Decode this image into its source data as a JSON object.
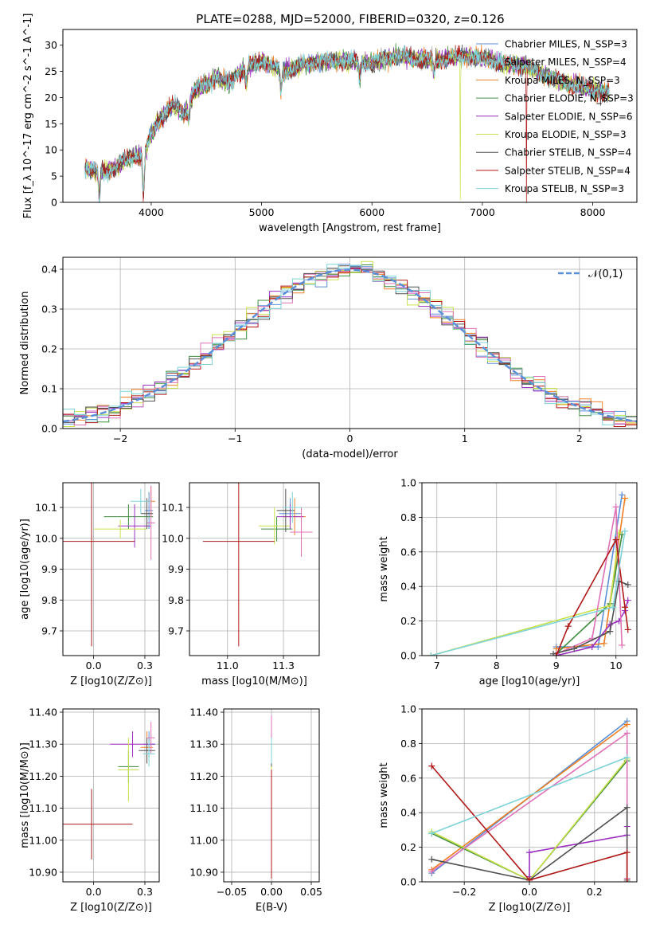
{
  "figure_title": "PLATE=0288, MJD=52000, FIBERID=0320, z=0.126",
  "legend_entries": [
    "Chabrier MILES, N$_{SSP}$=3",
    "Salpeter MILES, N$_{SSP}$=4",
    "Kroupa MILES, N$_{SSP}$=3",
    "Chabrier ELODIE, N$_{SSP}$=3",
    "Salpeter ELODIE, N$_{SSP}$=6",
    "Kroupa ELODIE, N$_{SSP}$=3",
    "Chabrier STELIB, N$_{SSP}$=4",
    "Salpeter STELIB, N$_{SSP}$=4",
    "Kroupa STELIB, N$_{SSP}$=3"
  ],
  "legend_display": [
    "Chabrier MILES, N_SSP=3",
    "Salpeter MILES, N_SSP=4",
    "Kroupa MILES, N_SSP=3",
    "Chabrier ELODIE, N_SSP=3",
    "Salpeter ELODIE, N_SSP=6",
    "Kroupa ELODIE, N_SSP=3",
    "Chabrier STELIB, N_SSP=4",
    "Salpeter STELIB, N_SSP=4",
    "Kroupa STELIB, N_SSP=3"
  ],
  "model_colors": [
    "#5b8fd8",
    "#a8a8a8",
    "#f07f22",
    "#3f8c3f",
    "#9b30c0",
    "#c8e04a",
    "#505050",
    "#b01818",
    "#7dd3d8"
  ],
  "mass_colors": [
    "#5b8fd8",
    "#f07f22",
    "#3f8c3f",
    "#9b30c0",
    "#c8e04a",
    "#e070b8",
    "#505050",
    "#b01818",
    "#7dd3d8"
  ],
  "chart_data": [
    {
      "id": "spectrum",
      "type": "line",
      "xlabel": "wavelength [Angstrom, rest frame]",
      "ylabel": "Flux [f_λ 10^-17 erg cm^-2 s^-1 A^-1]",
      "xlim": [
        3200,
        8400
      ],
      "ylim": [
        0,
        33
      ],
      "xticks": [
        4000,
        5000,
        6000,
        7000,
        8000
      ],
      "yticks": [
        0,
        5,
        10,
        15,
        20,
        25,
        30
      ],
      "grid": false,
      "legend_position": "top-right",
      "x_range_data": [
        3400,
        8150
      ],
      "envelope": {
        "x": [
          3400,
          3500,
          3600,
          3700,
          3800,
          3900,
          3950,
          4000,
          4100,
          4200,
          4300,
          4400,
          4500,
          4600,
          4700,
          4800,
          4900,
          5000,
          5200,
          5400,
          5600,
          5800,
          6000,
          6200,
          6400,
          6600,
          6800,
          7000,
          7200,
          7400,
          7600,
          7800,
          8000,
          8150
        ],
        "y": [
          6.5,
          6.0,
          6.0,
          7.0,
          8.5,
          9.0,
          10.0,
          13.0,
          16.5,
          18.5,
          17.0,
          21.5,
          22.5,
          24.0,
          22.5,
          25.0,
          26.0,
          27.0,
          25.0,
          26.5,
          27.0,
          27.0,
          26.5,
          28.0,
          27.5,
          27.0,
          28.0,
          27.5,
          26.5,
          26.0,
          24.0,
          22.5,
          21.5,
          21.0
        ]
      },
      "dips": [
        {
          "x": 3530,
          "depth": 6.0
        },
        {
          "x": 3930,
          "depth": 9.0
        },
        {
          "x": 4340,
          "depth": 3.0
        },
        {
          "x": 4861,
          "depth": 3.5
        },
        {
          "x": 5175,
          "depth": 4.0
        },
        {
          "x": 5890,
          "depth": 3.0
        },
        {
          "x": 6563,
          "depth": 2.5
        },
        {
          "x": 6800,
          "depth": 28.0
        },
        {
          "x": 7400,
          "depth": 26.0
        }
      ]
    },
    {
      "id": "residuals",
      "type": "histogram",
      "xlabel": "(data-model)/error",
      "ylabel": "Normed distribution",
      "xlim": [
        -2.5,
        2.5
      ],
      "ylim": [
        0,
        0.43
      ],
      "xticks": [
        -2,
        -1,
        0,
        1,
        2
      ],
      "yticks": [
        0.0,
        0.1,
        0.2,
        0.3,
        0.4
      ],
      "grid": true,
      "legend_position": "top-right",
      "reference_curve": {
        "name": "𝒩(0,1)",
        "mean": 0,
        "sigma": 1
      },
      "bins": 50
    },
    {
      "id": "age-vs-metallicity",
      "type": "errorbar",
      "xlabel": "Z [log10(Z/Z⊙)]",
      "ylabel": "age [log10(age/yr)]",
      "xlim": [
        -0.15,
        0.32
      ],
      "ylim": [
        9.62,
        10.18
      ],
      "xticks": [
        0.0,
        0.25
      ],
      "yticks": [
        9.7,
        9.8,
        9.9,
        10.0,
        10.1
      ],
      "grid": true,
      "points": [
        {
          "x": 0.27,
          "y": 10.09,
          "xerr": 0.02,
          "yerr": 0.06
        },
        {
          "x": 0.28,
          "y": 10.12,
          "xerr": 0.02,
          "yerr": 0.05
        },
        {
          "x": 0.17,
          "y": 10.07,
          "xerr": 0.12,
          "yerr": 0.04
        },
        {
          "x": 0.2,
          "y": 10.04,
          "xerr": 0.08,
          "yerr": 0.07
        },
        {
          "x": 0.13,
          "y": 10.03,
          "xerr": 0.13,
          "yerr": 0.03
        },
        {
          "x": 0.28,
          "y": 10.05,
          "xerr": 0.02,
          "yerr": 0.12
        },
        {
          "x": 0.26,
          "y": 10.08,
          "xerr": 0.03,
          "yerr": 0.05
        },
        {
          "x": -0.01,
          "y": 9.99,
          "xerr": 0.21,
          "yerr": 0.34
        },
        {
          "x": 0.23,
          "y": 10.12,
          "xerr": 0.05,
          "yerr": 0.04
        }
      ]
    },
    {
      "id": "age-vs-mass",
      "type": "errorbar",
      "xlabel": "mass [log10(M/M⊙)]",
      "ylabel": "",
      "xlim": [
        10.83,
        11.41
      ],
      "ylim": [
        9.62,
        10.18
      ],
      "xticks": [
        11.0,
        11.25
      ],
      "yticks": [
        9.7,
        9.8,
        9.9,
        10.0,
        10.1
      ],
      "grid": true,
      "points": [
        {
          "x": 11.28,
          "y": 10.08,
          "xerr": 0.05,
          "yerr": 0.05
        },
        {
          "x": 11.3,
          "y": 10.07,
          "xerr": 0.05,
          "yerr": 0.06
        },
        {
          "x": 11.22,
          "y": 10.03,
          "xerr": 0.07,
          "yerr": 0.04
        },
        {
          "x": 11.28,
          "y": 10.07,
          "xerr": 0.06,
          "yerr": 0.04
        },
        {
          "x": 11.21,
          "y": 10.04,
          "xerr": 0.07,
          "yerr": 0.06
        },
        {
          "x": 11.33,
          "y": 10.02,
          "xerr": 0.05,
          "yerr": 0.08
        },
        {
          "x": 11.26,
          "y": 10.09,
          "xerr": 0.04,
          "yerr": 0.07
        },
        {
          "x": 11.05,
          "y": 9.99,
          "xerr": 0.16,
          "yerr": 0.34
        },
        {
          "x": 11.29,
          "y": 10.1,
          "xerr": 0.04,
          "yerr": 0.05
        }
      ]
    },
    {
      "id": "weight-vs-age",
      "type": "line",
      "xlabel": "age [log10(age/yr)]",
      "ylabel": "mass weight",
      "xlim": [
        6.75,
        10.35
      ],
      "ylim": [
        0,
        1
      ],
      "xticks": [
        7,
        8,
        9,
        10
      ],
      "yticks": [
        0.0,
        0.2,
        0.4,
        0.6,
        0.8,
        1.0
      ],
      "grid": true,
      "series": [
        {
          "x": [
            9.0,
            9.7,
            10.1
          ],
          "y": [
            0.05,
            0.05,
            0.93
          ]
        },
        {
          "x": [
            9.0,
            9.8,
            10.15
          ],
          "y": [
            0.04,
            0.07,
            0.91
          ]
        },
        {
          "x": [
            9.0,
            9.9,
            10.1
          ],
          "y": [
            0.01,
            0.3,
            0.7
          ]
        },
        {
          "x": [
            9.0,
            9.6,
            9.9,
            10.05,
            10.15,
            10.2
          ],
          "y": [
            0.0,
            0.05,
            0.18,
            0.2,
            0.26,
            0.32
          ]
        },
        {
          "x": [
            6.9,
            9.9,
            10.05
          ],
          "y": [
            0.0,
            0.29,
            0.71
          ]
        },
        {
          "x": [
            9.0,
            9.6,
            10.0,
            10.1
          ],
          "y": [
            0.01,
            0.1,
            0.86,
            0.06
          ]
        },
        {
          "x": [
            8.95,
            9.3,
            9.9,
            10.05,
            10.2
          ],
          "y": [
            0.01,
            0.04,
            0.14,
            0.43,
            0.41
          ]
        },
        {
          "x": [
            9.0,
            9.2,
            10.0,
            10.15,
            10.2
          ],
          "y": [
            0.0,
            0.17,
            0.67,
            0.28,
            0.15
          ]
        },
        {
          "x": [
            6.9,
            9.95,
            10.15
          ],
          "y": [
            0.0,
            0.28,
            0.72
          ]
        }
      ]
    },
    {
      "id": "mass-vs-metallicity",
      "type": "errorbar",
      "xlabel": "Z [log10(Z/Z⊙)]",
      "ylabel": "mass [log10(M/M⊙)]",
      "xlim": [
        -0.15,
        0.32
      ],
      "ylim": [
        10.87,
        11.41
      ],
      "xticks": [
        0.0,
        0.25
      ],
      "yticks": [
        10.9,
        11.0,
        11.1,
        11.2,
        11.3,
        11.4
      ],
      "grid": true,
      "points": [
        {
          "x": 0.27,
          "y": 11.3,
          "xerr": 0.03,
          "yerr": 0.04
        },
        {
          "x": 0.26,
          "y": 11.29,
          "xerr": 0.03,
          "yerr": 0.05
        },
        {
          "x": 0.17,
          "y": 11.23,
          "xerr": 0.05,
          "yerr": 0.05
        },
        {
          "x": 0.19,
          "y": 11.3,
          "xerr": 0.11,
          "yerr": 0.04
        },
        {
          "x": 0.17,
          "y": 11.22,
          "xerr": 0.05,
          "yerr": 0.1
        },
        {
          "x": 0.28,
          "y": 11.32,
          "xerr": 0.02,
          "yerr": 0.05
        },
        {
          "x": 0.26,
          "y": 11.28,
          "xerr": 0.04,
          "yerr": 0.04
        },
        {
          "x": -0.01,
          "y": 11.05,
          "xerr": 0.2,
          "yerr": 0.11
        },
        {
          "x": 0.27,
          "y": 11.27,
          "xerr": 0.03,
          "yerr": 0.04
        }
      ]
    },
    {
      "id": "mass-vs-extinction",
      "type": "errorbar",
      "xlabel": "E(B-V)",
      "ylabel": "",
      "xlim": [
        -0.06,
        0.06
      ],
      "ylim": [
        10.87,
        11.41
      ],
      "xticks": [
        -0.05,
        0.0,
        0.05
      ],
      "yticks": [
        10.9,
        11.0,
        11.1,
        11.2,
        11.3,
        11.4
      ],
      "grid": true,
      "points": [
        {
          "x": 0.0,
          "y": 11.3,
          "xerr": 0.0,
          "yerr": 0.04
        },
        {
          "x": 0.0,
          "y": 11.3,
          "xerr": 0.0,
          "yerr": 0.05
        },
        {
          "x": 0.0,
          "y": 11.22,
          "xerr": 0.0,
          "yerr": 0.05
        },
        {
          "x": 0.0,
          "y": 11.3,
          "xerr": 0.0,
          "yerr": 0.04
        },
        {
          "x": 0.0,
          "y": 11.21,
          "xerr": 0.0,
          "yerr": 0.1
        },
        {
          "x": 0.0,
          "y": 11.33,
          "xerr": 0.0,
          "yerr": 0.06
        },
        {
          "x": 0.0,
          "y": 11.27,
          "xerr": 0.0,
          "yerr": 0.04
        },
        {
          "x": 0.0,
          "y": 11.05,
          "xerr": 0.0,
          "yerr": 0.17
        },
        {
          "x": 0.0,
          "y": 11.28,
          "xerr": 0.0,
          "yerr": 0.04
        }
      ]
    },
    {
      "id": "weight-vs-metallicity",
      "type": "line",
      "xlabel": "Z [log10(Z/Z⊙)]",
      "ylabel": "mass weight",
      "xlim": [
        -0.33,
        0.33
      ],
      "ylim": [
        0,
        1
      ],
      "xticks": [
        -0.2,
        0.0,
        0.2
      ],
      "yticks": [
        0.0,
        0.2,
        0.4,
        0.6,
        0.8,
        1.0
      ],
      "grid": true,
      "series": [
        {
          "x": [
            -0.3,
            0.3
          ],
          "y": [
            0.05,
            0.93
          ]
        },
        {
          "x": [
            -0.3,
            0.3
          ],
          "y": [
            0.07,
            0.91
          ]
        },
        {
          "x": [
            -0.3,
            0.0,
            0.3
          ],
          "y": [
            0.28,
            0.01,
            0.7
          ]
        },
        {
          "x": [
            0.0,
            0.0,
            0.3,
            0.3
          ],
          "y": [
            0.03,
            0.17,
            0.27,
            0.32
          ]
        },
        {
          "x": [
            -0.3,
            0.0,
            0.3
          ],
          "y": [
            0.29,
            0.01,
            0.71
          ]
        },
        {
          "x": [
            -0.3,
            0.3,
            0.3
          ],
          "y": [
            0.06,
            0.86,
            0.02
          ]
        },
        {
          "x": [
            -0.3,
            0.0,
            0.3,
            0.3
          ],
          "y": [
            0.13,
            0.01,
            0.43,
            0.01
          ]
        },
        {
          "x": [
            -0.3,
            0.0,
            0.3,
            0.3
          ],
          "y": [
            0.67,
            0.01,
            0.17,
            0.0
          ]
        },
        {
          "x": [
            -0.3,
            0.3
          ],
          "y": [
            0.28,
            0.72
          ]
        }
      ]
    }
  ]
}
